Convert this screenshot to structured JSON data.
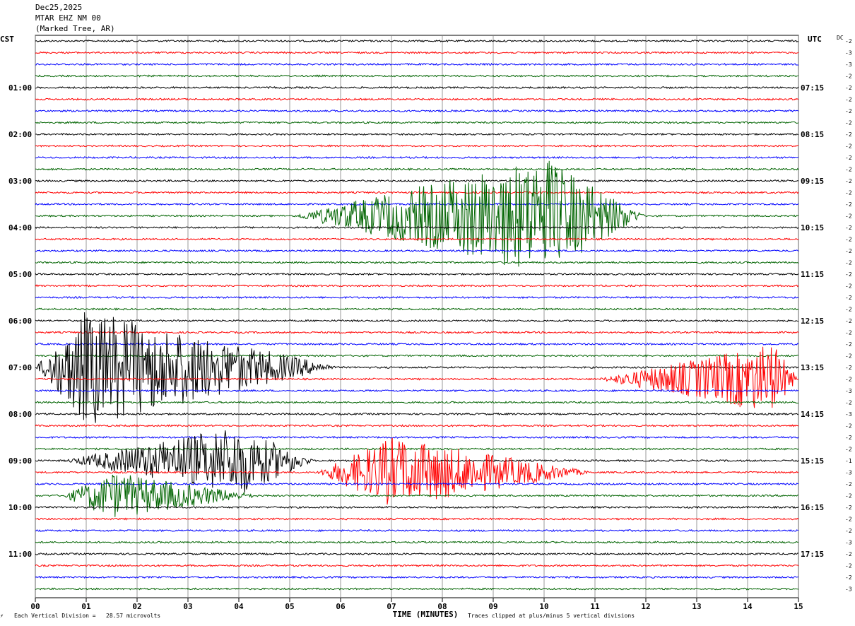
{
  "header": {
    "date": "Dec25,2025",
    "station": "MTAR EHZ NM 00",
    "location": "(Marked Tree, AR)"
  },
  "corners": {
    "left_tz": "CST",
    "right_tz": "UTC",
    "dc_label": "DC"
  },
  "footer": {
    "scale_note": "Each Vertical Division =   28.57 microvolts",
    "clip_note": "Traces clipped at plus/minus 5 vertical divisions",
    "xlabel": "TIME (MINUTES)"
  },
  "colors": {
    "black": "#000000",
    "red": "#ff0000",
    "blue": "#0000ff",
    "green": "#006400",
    "grid": "#808080"
  },
  "chart_data": {
    "type": "line",
    "title": "MTAR EHZ NM 00",
    "xlabel": "TIME (MINUTES)",
    "ylabel": "",
    "xlim": [
      0,
      15
    ],
    "x_ticks": [
      "00",
      "01",
      "02",
      "03",
      "04",
      "05",
      "06",
      "07",
      "08",
      "09",
      "10",
      "11",
      "12",
      "13",
      "14",
      "15"
    ],
    "trace_count": 48,
    "trace_minutes": 15,
    "color_cycle": [
      "black",
      "red",
      "blue",
      "green"
    ],
    "left_labels": [
      {
        "trace": 0,
        "text": "CST"
      },
      {
        "trace": 4,
        "text": "01:00"
      },
      {
        "trace": 8,
        "text": "02:00"
      },
      {
        "trace": 12,
        "text": "03:00"
      },
      {
        "trace": 16,
        "text": "04:00"
      },
      {
        "trace": 20,
        "text": "05:00"
      },
      {
        "trace": 24,
        "text": "06:00"
      },
      {
        "trace": 28,
        "text": "07:00"
      },
      {
        "trace": 32,
        "text": "08:00"
      },
      {
        "trace": 36,
        "text": "09:00"
      },
      {
        "trace": 40,
        "text": "10:00"
      },
      {
        "trace": 44,
        "text": "11:00"
      }
    ],
    "right_labels": [
      {
        "trace": 4,
        "text": "07:15"
      },
      {
        "trace": 8,
        "text": "08:15"
      },
      {
        "trace": 12,
        "text": "09:15"
      },
      {
        "trace": 16,
        "text": "10:15"
      },
      {
        "trace": 20,
        "text": "11:15"
      },
      {
        "trace": 24,
        "text": "12:15"
      },
      {
        "trace": 28,
        "text": "13:15"
      },
      {
        "trace": 32,
        "text": "14:15"
      },
      {
        "trace": 36,
        "text": "15:15"
      },
      {
        "trace": 40,
        "text": "16:15"
      },
      {
        "trace": 44,
        "text": "17:15"
      }
    ],
    "dc_offsets": [
      "-2",
      "-3",
      "-3",
      "-2",
      "-2",
      "-2",
      "-2",
      "-2",
      "-2",
      "-2",
      "-2",
      "-2",
      "-2",
      "-2",
      "-2",
      "-2",
      "-2",
      "-2",
      "-2",
      "-2",
      "-2",
      "-2",
      "-2",
      "-2",
      "-2",
      "-2",
      "-2",
      "-2",
      "-2",
      "-2",
      "-3",
      "-2",
      "-3",
      "-2",
      "-2",
      "-2",
      "-1",
      "-3",
      "-2",
      "-2",
      "-2",
      "-2",
      "-2",
      "-3",
      "-2",
      "-2",
      "-2",
      "-3"
    ],
    "events": [
      {
        "trace": 15,
        "start_min": 5.0,
        "end_min": 12.0,
        "peak_min": 10.0,
        "amplitude_divisions": 5
      },
      {
        "trace": 28,
        "start_min": 0.0,
        "end_min": 6.0,
        "peak_min": 1.0,
        "amplitude_divisions": 5
      },
      {
        "trace": 29,
        "start_min": 11.0,
        "end_min": 15.0,
        "peak_min": 14.5,
        "amplitude_divisions": 3
      },
      {
        "trace": 36,
        "start_min": 0.5,
        "end_min": 5.5,
        "peak_min": 4.0,
        "amplitude_divisions": 3
      },
      {
        "trace": 37,
        "start_min": 5.5,
        "end_min": 11.0,
        "peak_min": 7.0,
        "amplitude_divisions": 3
      },
      {
        "trace": 39,
        "start_min": 0.5,
        "end_min": 4.5,
        "peak_min": 1.5,
        "amplitude_divisions": 2
      }
    ]
  }
}
